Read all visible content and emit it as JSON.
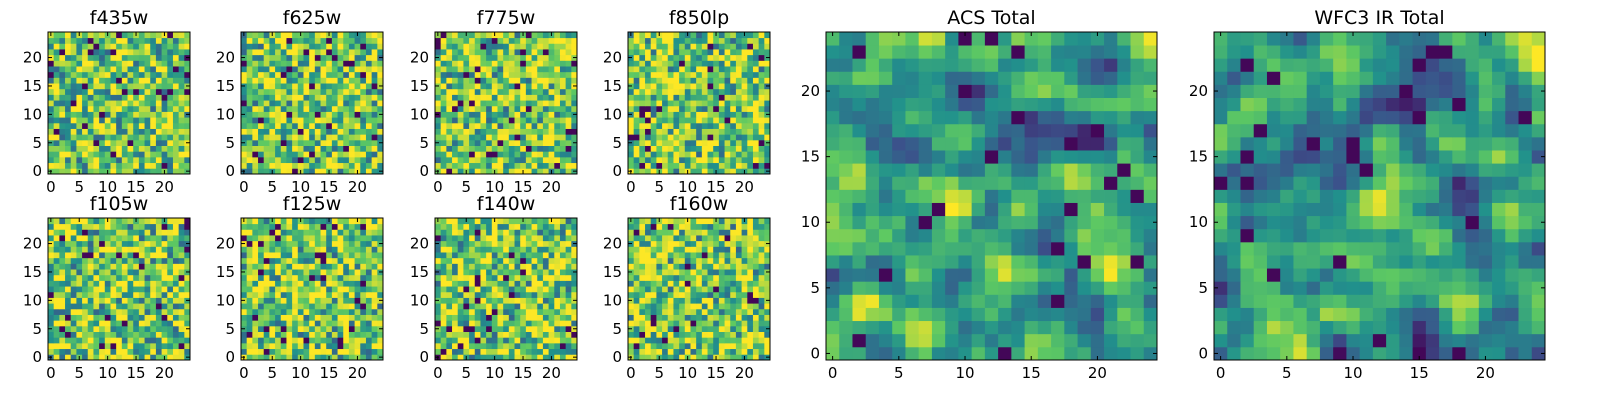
{
  "figure": {
    "background": "#ffffff"
  },
  "colormap": {
    "name": "viridis",
    "stops": [
      "#440154",
      "#3b528b",
      "#21918c",
      "#5ec962",
      "#fde725"
    ]
  },
  "chart_data": [
    {
      "id": "f435w",
      "type": "heatmap",
      "title": "f435w",
      "grid_size": 25,
      "xlim": [
        0,
        24
      ],
      "ylim": [
        0,
        24
      ],
      "x_ticks": [
        0,
        5,
        10,
        15,
        20
      ],
      "y_ticks": [
        0,
        5,
        10,
        15,
        20
      ],
      "texture_seed": 11,
      "value_range": [
        0,
        1
      ],
      "data_values": "dense 25x25 random pixel grid (not individually readable)"
    },
    {
      "id": "f625w",
      "type": "heatmap",
      "title": "f625w",
      "grid_size": 25,
      "xlim": [
        0,
        24
      ],
      "ylim": [
        0,
        24
      ],
      "x_ticks": [
        0,
        5,
        10,
        15,
        20
      ],
      "y_ticks": [
        0,
        5,
        10,
        15,
        20
      ],
      "texture_seed": 23,
      "value_range": [
        0,
        1
      ],
      "data_values": "dense 25x25 random pixel grid (not individually readable)"
    },
    {
      "id": "f775w",
      "type": "heatmap",
      "title": "f775w",
      "grid_size": 25,
      "xlim": [
        0,
        24
      ],
      "ylim": [
        0,
        24
      ],
      "x_ticks": [
        0,
        5,
        10,
        15,
        20
      ],
      "y_ticks": [
        0,
        5,
        10,
        15,
        20
      ],
      "texture_seed": 37,
      "value_range": [
        0,
        1
      ],
      "data_values": "dense 25x25 random pixel grid (not individually readable)"
    },
    {
      "id": "f850lp",
      "type": "heatmap",
      "title": "f850lp",
      "grid_size": 25,
      "xlim": [
        0,
        24
      ],
      "ylim": [
        0,
        24
      ],
      "x_ticks": [
        0,
        5,
        10,
        15,
        20
      ],
      "y_ticks": [
        0,
        5,
        10,
        15,
        20
      ],
      "texture_seed": 41,
      "value_range": [
        0,
        1
      ],
      "data_values": "dense 25x25 random pixel grid (not individually readable)"
    },
    {
      "id": "f105w",
      "type": "heatmap",
      "title": "f105w",
      "grid_size": 25,
      "xlim": [
        0,
        24
      ],
      "ylim": [
        0,
        24
      ],
      "x_ticks": [
        0,
        5,
        10,
        15,
        20
      ],
      "y_ticks": [
        0,
        5,
        10,
        15,
        20
      ],
      "texture_seed": 53,
      "value_range": [
        0,
        1
      ],
      "data_values": "dense 25x25 random pixel grid (not individually readable)"
    },
    {
      "id": "f125w",
      "type": "heatmap",
      "title": "f125w",
      "grid_size": 25,
      "xlim": [
        0,
        24
      ],
      "ylim": [
        0,
        24
      ],
      "x_ticks": [
        0,
        5,
        10,
        15,
        20
      ],
      "y_ticks": [
        0,
        5,
        10,
        15,
        20
      ],
      "texture_seed": 67,
      "value_range": [
        0,
        1
      ],
      "data_values": "dense 25x25 random pixel grid (not individually readable)"
    },
    {
      "id": "f140w",
      "type": "heatmap",
      "title": "f140w",
      "grid_size": 25,
      "xlim": [
        0,
        24
      ],
      "ylim": [
        0,
        24
      ],
      "x_ticks": [
        0,
        5,
        10,
        15,
        20
      ],
      "y_ticks": [
        0,
        5,
        10,
        15,
        20
      ],
      "texture_seed": 79,
      "value_range": [
        0,
        1
      ],
      "data_values": "dense 25x25 random pixel grid (not individually readable)"
    },
    {
      "id": "f160w",
      "type": "heatmap",
      "title": "f160w",
      "grid_size": 25,
      "xlim": [
        0,
        24
      ],
      "ylim": [
        0,
        24
      ],
      "x_ticks": [
        0,
        5,
        10,
        15,
        20
      ],
      "y_ticks": [
        0,
        5,
        10,
        15,
        20
      ],
      "texture_seed": 83,
      "value_range": [
        0,
        1
      ],
      "data_values": "dense 25x25 random pixel grid (not individually readable)"
    },
    {
      "id": "acs-total",
      "type": "heatmap",
      "title": "ACS Total",
      "grid_size": 25,
      "xlim": [
        0,
        24
      ],
      "ylim": [
        0,
        24
      ],
      "x_ticks": [
        0,
        5,
        10,
        15,
        20
      ],
      "y_ticks": [
        0,
        5,
        10,
        15,
        20
      ],
      "texture_seed": 97,
      "value_range": [
        0,
        1
      ],
      "data_values": "dense 25x25 random pixel grid (not individually readable)"
    },
    {
      "id": "wfc3-total",
      "type": "heatmap",
      "title": "WFC3 IR Total",
      "grid_size": 25,
      "xlim": [
        0,
        24
      ],
      "ylim": [
        0,
        24
      ],
      "x_ticks": [
        0,
        5,
        10,
        15,
        20
      ],
      "y_ticks": [
        0,
        5,
        10,
        15,
        20
      ],
      "texture_seed": 101,
      "value_range": [
        0,
        1
      ],
      "data_values": "dense 25x25 random pixel grid (not individually readable)"
    }
  ]
}
